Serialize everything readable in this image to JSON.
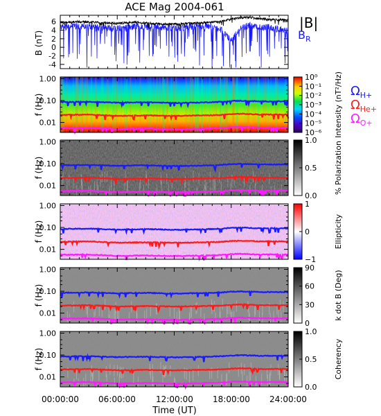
{
  "title": "ACE Mag 2004-061",
  "x_axis": {
    "label": "Time (UT)",
    "ticks": [
      "00:00:00",
      "06:00:00",
      "12:00:00",
      "18:00:00",
      "24:00:00"
    ],
    "range_hours": [
      0,
      24
    ]
  },
  "colors": {
    "B_total": "#000000",
    "B_R": "#1a1aff",
    "proton": "#1a1aff",
    "helium": "#ff1a1a",
    "oxygen": "#ff1aff"
  },
  "chart_data": [
    {
      "type": "line",
      "panel": "field",
      "ylabel": "B (nT)",
      "ylim": [
        -5,
        7.5
      ],
      "yticks": [
        -4,
        -2,
        0,
        2,
        4,
        6
      ],
      "legend": [
        "|B|",
        "B_R"
      ],
      "series": [
        {
          "name": "|B|",
          "x": [
            0,
            2,
            4,
            6,
            8,
            10,
            12,
            14,
            16,
            17,
            18,
            19,
            20,
            21,
            22,
            24
          ],
          "y": [
            5.8,
            6.0,
            5.8,
            5.6,
            5.9,
            5.5,
            5.4,
            5.6,
            5.9,
            6.1,
            6.6,
            6.9,
            7.0,
            6.7,
            6.5,
            6.4
          ]
        },
        {
          "name": "B_R",
          "x": [
            0,
            2,
            4,
            6,
            8,
            10,
            12,
            14,
            16,
            17,
            18,
            19,
            20,
            21,
            22,
            24
          ],
          "y": [
            4.8,
            5.0,
            4.6,
            4.4,
            4.9,
            4.7,
            4.5,
            4.8,
            5.0,
            4.0,
            1.5,
            4.5,
            5.2,
            4.6,
            4.7,
            3.8
          ]
        }
      ]
    },
    {
      "type": "heatmap",
      "panel": "intensity",
      "ylabel": "f (Hz)",
      "yscale": "log",
      "ylim": [
        0.0035,
        1.2
      ],
      "yticks": [
        "1.00",
        "0.10",
        "0.01"
      ],
      "colorbar": {
        "label": "Intensity (nT²/Hz)",
        "ticks": [
          "10⁰",
          "10⁻¹",
          "10⁻²",
          "10⁻³",
          "10⁻⁴",
          "10⁻⁵",
          "10⁻⁶"
        ],
        "scale": "rainbow"
      },
      "legend": [
        "Ω_H+",
        "Ω_He+",
        "Ω_O+"
      ]
    },
    {
      "type": "heatmap",
      "panel": "polarization",
      "ylabel": "f (Hz)",
      "yscale": "log",
      "yticks": [
        "1.00",
        "0.10",
        "0.01"
      ],
      "colorbar": {
        "label": "% Polarization",
        "ticks": [
          "1.0",
          "0.5",
          "0.0"
        ],
        "scale": "gray"
      }
    },
    {
      "type": "heatmap",
      "panel": "ellipticity",
      "ylabel": "f (Hz)",
      "yscale": "log",
      "yticks": [
        "1.00",
        "0.10",
        "0.01"
      ],
      "colorbar": {
        "label": "Ellipticity",
        "ticks": [
          "1",
          "0",
          "−1"
        ],
        "scale": "blue-white-red"
      }
    },
    {
      "type": "heatmap",
      "panel": "kdotb",
      "ylabel": "f (Hz)",
      "yscale": "log",
      "yticks": [
        "1.00",
        "0.10",
        "0.01"
      ],
      "colorbar": {
        "label": "k dot B (Deg)",
        "ticks": [
          "90",
          "60",
          "30",
          "0"
        ],
        "scale": "gray"
      }
    },
    {
      "type": "heatmap",
      "panel": "coherency",
      "ylabel": "f (Hz)",
      "yscale": "log",
      "yticks": [
        "1.00",
        "0.10",
        "0.01"
      ],
      "colorbar": {
        "label": "Coherency",
        "ticks": [
          "1.0",
          "0.5",
          "0.0"
        ],
        "scale": "gray"
      }
    },
    {
      "type": "line",
      "panel": "gyrofrequencies",
      "series": [
        {
          "name": "Ω_H+",
          "x": [
            0,
            3,
            6,
            9,
            12,
            15,
            17,
            18,
            19,
            21,
            24
          ],
          "y": [
            0.085,
            0.088,
            0.08,
            0.084,
            0.078,
            0.082,
            0.088,
            0.096,
            0.098,
            0.092,
            0.092
          ]
        },
        {
          "name": "Ω_He+",
          "x": [
            0,
            3,
            6,
            9,
            12,
            15,
            17,
            18,
            19,
            21,
            24
          ],
          "y": [
            0.022,
            0.023,
            0.02,
            0.021,
            0.02,
            0.021,
            0.022,
            0.024,
            0.025,
            0.023,
            0.023
          ]
        },
        {
          "name": "Ω_O+",
          "x": [
            0,
            3,
            6,
            9,
            12,
            15,
            17,
            18,
            19,
            21,
            24
          ],
          "y": [
            0.0056,
            0.0058,
            0.005,
            0.0053,
            0.0049,
            0.0052,
            0.0055,
            0.006,
            0.0062,
            0.0058,
            0.0058
          ]
        }
      ]
    }
  ]
}
